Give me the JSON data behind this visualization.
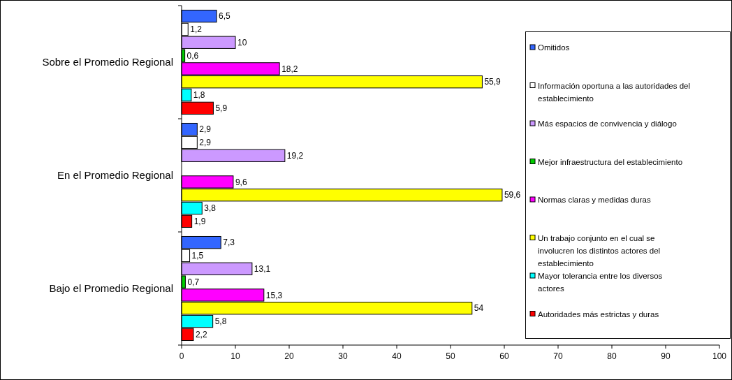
{
  "chart_data": {
    "type": "bar",
    "orientation": "horizontal",
    "categories": [
      "Sobre el Promedio Regional",
      "En el Promedio Regional",
      "Bajo el Promedio Regional"
    ],
    "series": [
      {
        "name": "Omitidos",
        "color": "#3366ff",
        "values": [
          6.5,
          2.9,
          7.3
        ],
        "value_labels": [
          "6,5",
          "2,9",
          "7,3"
        ]
      },
      {
        "name": "Información oportuna a las autoridades del establecimiento",
        "color": "#ffffff",
        "values": [
          1.2,
          2.9,
          1.5
        ],
        "value_labels": [
          "1,2",
          "2,9",
          "1,5"
        ]
      },
      {
        "name": "Más espacios de convivencia y diálogo",
        "color": "#cc99ff",
        "values": [
          10,
          19.2,
          13.1
        ],
        "value_labels": [
          "10",
          "19,2",
          "13,1"
        ]
      },
      {
        "name": "Mejor infraestructura del establecimiento",
        "color": "#00cc00",
        "values": [
          0.6,
          null,
          0.7
        ],
        "value_labels": [
          "0,6",
          null,
          "0,7"
        ]
      },
      {
        "name": "Normas claras y medidas duras",
        "color": "#ff00ff",
        "values": [
          18.2,
          9.6,
          15.3
        ],
        "value_labels": [
          "18,2",
          "9,6",
          "15,3"
        ]
      },
      {
        "name": "Un trabajo conjunto en el cual se involucren los distintos actores del establecimiento",
        "color": "#ffff00",
        "values": [
          55.9,
          59.6,
          54
        ],
        "value_labels": [
          "55,9",
          "59,6",
          "54"
        ]
      },
      {
        "name": "Mayor tolerancia entre los diversos actores",
        "color": "#00ffff",
        "values": [
          1.8,
          3.8,
          5.8
        ],
        "value_labels": [
          "1,8",
          "3,8",
          "5,8"
        ]
      },
      {
        "name": "Autoridades más estrictas y duras",
        "color": "#ff0000",
        "values": [
          5.9,
          1.9,
          2.2
        ],
        "value_labels": [
          "5,9",
          "1,9",
          "2,2"
        ]
      }
    ],
    "xlim": [
      0,
      100
    ],
    "xticks": [
      0,
      10,
      20,
      30,
      40,
      50,
      60,
      70,
      80,
      90,
      100
    ],
    "grid": false,
    "legend": "right"
  }
}
